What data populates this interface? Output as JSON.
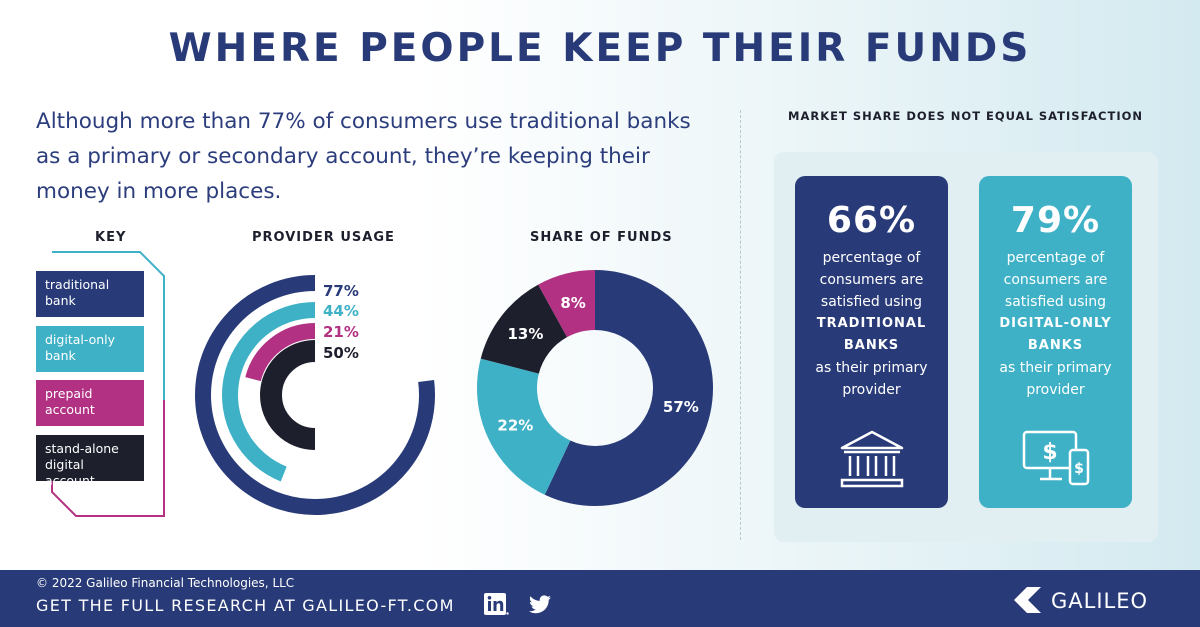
{
  "title": "WHERE PEOPLE KEEP THEIR FUNDS",
  "intro": "Although more than 77% of consumers use traditional banks as a primary or secondary account, they’re keeping their money in more places.",
  "key": {
    "heading": "KEY",
    "items": [
      {
        "label": "traditional bank",
        "color": "#283a78"
      },
      {
        "label": "digital-only bank",
        "color": "#3fb1c7"
      },
      {
        "label": "prepaid account",
        "color": "#b23183"
      },
      {
        "label": "stand-alone digital account",
        "color": "#1d1f2d"
      }
    ]
  },
  "chart_data": [
    {
      "type": "radial-bar",
      "title": "PROVIDER USAGE",
      "categories": [
        "traditional bank",
        "digital-only bank",
        "prepaid account",
        "stand-alone digital account"
      ],
      "values": [
        77,
        44,
        21,
        50
      ],
      "labels": [
        "77%",
        "44%",
        "21%",
        "50%"
      ],
      "colors": [
        "#283a78",
        "#3fb1c7",
        "#b23183",
        "#1d1f2d"
      ],
      "unit": "%"
    },
    {
      "type": "pie",
      "title": "SHARE OF FUNDS",
      "categories": [
        "traditional bank",
        "digital-only bank",
        "stand-alone digital account",
        "prepaid account"
      ],
      "values": [
        57,
        22,
        13,
        8
      ],
      "labels": [
        "57%",
        "22%",
        "13%",
        "8%"
      ],
      "colors": [
        "#283a78",
        "#3fb1c7",
        "#1d1f2d",
        "#b23183"
      ],
      "unit": "%"
    }
  ],
  "satisfaction": {
    "heading": "MARKET SHARE DOES NOT EQUAL SATISFACTION",
    "cards": [
      {
        "percent": "66%",
        "line1": "percentage of",
        "line2": "consumers are",
        "line3": "satisfied using",
        "bold1": "TRADITIONAL",
        "bold2": "BANKS",
        "line4": "as their primary",
        "line5": "provider",
        "icon": "bank-icon",
        "color": "#283a78"
      },
      {
        "percent": "79%",
        "line1": "percentage of",
        "line2": "consumers are",
        "line3": "satisfied using",
        "bold1": "DIGITAL-ONLY",
        "bold2": "BANKS",
        "line4": "as their primary",
        "line5": "provider",
        "icon": "digital-devices-icon",
        "color": "#3fb1c7"
      }
    ]
  },
  "footer": {
    "copyright": "© 2022 Galileo Financial Technologies, LLC",
    "cta": "GET THE FULL RESEARCH AT GALILEO-FT.COM",
    "social": [
      "linkedin-icon",
      "twitter-icon"
    ],
    "brand": "GALILEO"
  }
}
